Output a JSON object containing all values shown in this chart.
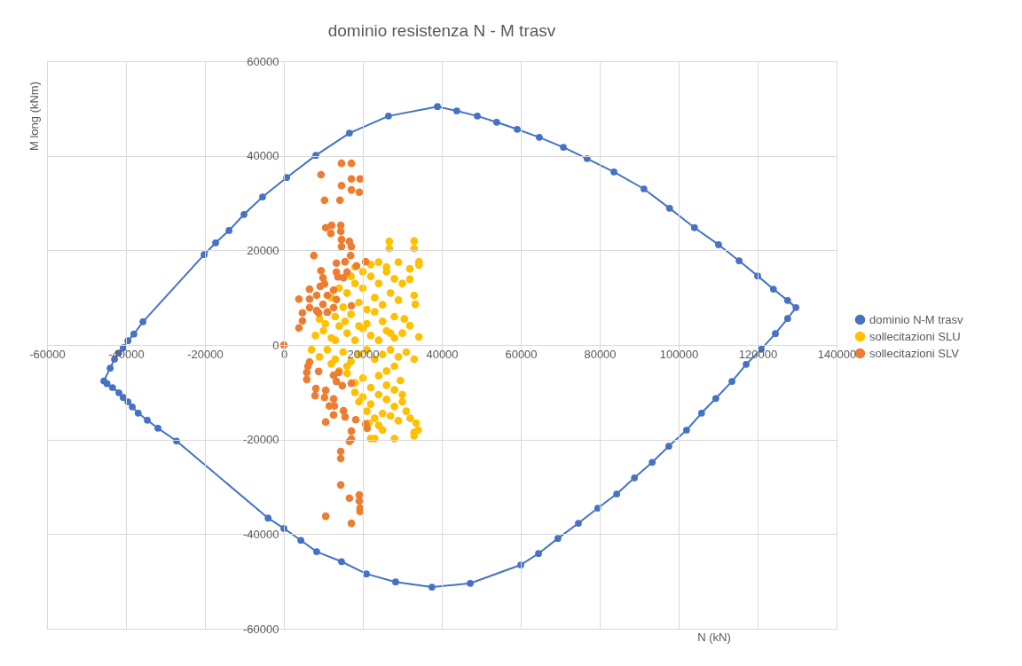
{
  "chart_data": {
    "type": "scatter",
    "title": "dominio resistenza N - M trasv",
    "xlabel": "N (kN)",
    "ylabel": "M long (kNm)",
    "xlim": [
      -60000,
      140000
    ],
    "xticks": [
      -60000,
      -40000,
      -20000,
      0,
      20000,
      40000,
      60000,
      80000,
      100000,
      120000,
      140000
    ],
    "ylim": [
      -60000,
      60000
    ],
    "yticks": [
      -60000,
      -40000,
      -20000,
      0,
      20000,
      40000,
      60000
    ],
    "grid": true,
    "legend": "right",
    "marker": "circle",
    "series": [
      {
        "name": "dominio N-M trasv",
        "type": "line",
        "line_style": "solid",
        "color": "#4472c4",
        "x": [
          -45600,
          -44000,
          -42900,
          -41800,
          -40700,
          -39500,
          -38000,
          -35700,
          -20200,
          -17300,
          -13900,
          -10100,
          -5400,
          700,
          8100,
          16600,
          26500,
          38900,
          43800,
          49000,
          53900,
          59100,
          64700,
          70800,
          76800,
          83600,
          91200,
          97700,
          104000,
          110100,
          115300,
          120000,
          124000,
          127600,
          129700,
          127600,
          124500,
          120900,
          117100,
          113500,
          109400,
          105800,
          102000,
          97500,
          93300,
          88800,
          84300,
          79500,
          74600,
          69400,
          64500,
          60000,
          47200,
          37500,
          28300,
          20900,
          14600,
          8300,
          4300,
          0,
          -4000,
          -27200,
          -31900,
          -34600,
          -36900,
          -38400,
          -39500,
          -40700,
          -41800,
          -43400,
          -44800
        ],
        "values": [
          -7600,
          -4900,
          -3000,
          -1700,
          -600,
          900,
          2300,
          4900,
          19100,
          21600,
          24200,
          27600,
          31300,
          35400,
          40100,
          44800,
          48400,
          50400,
          49500,
          48400,
          47100,
          45600,
          43900,
          41800,
          39400,
          36600,
          33000,
          28900,
          24800,
          21200,
          17800,
          14600,
          11800,
          9400,
          7900,
          5600,
          2400,
          -900,
          -4100,
          -7700,
          -11300,
          -14400,
          -18000,
          -21400,
          -24800,
          -28100,
          -31500,
          -34500,
          -37700,
          -40900,
          -44100,
          -46500,
          -50400,
          -51200,
          -50100,
          -48400,
          -45800,
          -43700,
          -41300,
          -38800,
          -36600,
          -20300,
          -17600,
          -15900,
          -14400,
          -13100,
          -12000,
          -11100,
          -10100,
          -9000,
          -8200
        ]
      },
      {
        "name": "sollecitazioni SLU",
        "color": "#ffc000",
        "x": [
          8000,
          10000,
          12000,
          14000,
          16000,
          18000,
          20000,
          22000,
          24000,
          26000,
          28000,
          30000,
          9000,
          11000,
          13000,
          15000,
          17000,
          19000,
          21000,
          23000,
          25000,
          27000,
          29000,
          12000,
          14000,
          16000,
          18000,
          20000,
          22000,
          24000,
          26000,
          28000,
          18000,
          20000,
          22000,
          24000,
          26000,
          29000,
          30000,
          30500,
          28000,
          21000,
          19000,
          25000,
          17000,
          13000,
          33000,
          33000,
          34200,
          34200,
          31900,
          31900,
          33000,
          33300,
          31900,
          34200,
          26700,
          26700,
          23000,
          10500,
          15500,
          27000,
          7000,
          9000,
          11000,
          13000,
          15000,
          17000,
          19000,
          21000,
          23000,
          25000,
          27000,
          29000,
          31000,
          33000,
          16000,
          18000,
          20000,
          22000,
          24000,
          26000,
          28000,
          20000,
          22000,
          24000,
          26000,
          28000,
          30000,
          31000,
          32000,
          33500,
          34000,
          29000,
          27000,
          25000,
          23000,
          24000,
          21000,
          19000,
          18000,
          22000,
          23000,
          28000,
          33000,
          33000,
          16000,
          12000,
          14000,
          26000,
          28000,
          30000,
          29500,
          25000,
          21500
        ],
        "values": [
          2000,
          3000,
          1500,
          4000,
          2500,
          1000,
          3500,
          2000,
          1000,
          3000,
          1500,
          2500,
          5500,
          7000,
          6000,
          8000,
          6500,
          9000,
          7500,
          10000,
          8500,
          11000,
          9500,
          10000,
          12000,
          11000,
          13000,
          12000,
          14500,
          13000,
          15500,
          14000,
          16500,
          15500,
          17000,
          17500,
          16500,
          17500,
          13000,
          5500,
          6000,
          4500,
          4000,
          5000,
          14500,
          1000,
          22000,
          20400,
          17600,
          16900,
          16100,
          13900,
          10500,
          8600,
          4100,
          1700,
          21900,
          20400,
          7000,
          4500,
          5000,
          2500,
          -1000,
          -2500,
          -1000,
          -3000,
          -1500,
          -3500,
          -2000,
          -1000,
          -3000,
          -2000,
          -1000,
          -2500,
          -1500,
          -3000,
          -6000,
          -8000,
          -7000,
          -9000,
          -6500,
          -5500,
          -4500,
          -11000,
          -12500,
          -10500,
          -11500,
          -13000,
          -12000,
          -14000,
          -15500,
          -16500,
          -18000,
          -16000,
          -15000,
          -14500,
          -15500,
          -17000,
          -14000,
          -12000,
          -10000,
          -19800,
          -19800,
          -19800,
          -18500,
          -19200,
          -4500,
          -4000,
          -5500,
          -8500,
          -9500,
          -10500,
          -7500,
          -18000,
          -16500
        ]
      },
      {
        "name": "sollecitazioni SLV",
        "color": "#ed7d31",
        "x": [
          14600,
          17100,
          9400,
          17100,
          19300,
          14600,
          17100,
          19100,
          10300,
          14200,
          10600,
          12100,
          14400,
          11900,
          14400,
          14600,
          16600,
          17100,
          14600,
          7600,
          16900,
          15500,
          13300,
          20700,
          18400,
          9400,
          13300,
          16000,
          9900,
          13700,
          15100,
          6500,
          9200,
          10300,
          12600,
          3800,
          6500,
          8300,
          11000,
          13300,
          9900,
          6500,
          12600,
          17100,
          4700,
          8800,
          11000,
          4700,
          3800,
          8300,
          0,
          6500,
          6100,
          5800,
          5800,
          8800,
          12600,
          13900,
          13300,
          17100,
          14800,
          8100,
          7900,
          10600,
          10300,
          12600,
          11500,
          12800,
          12600,
          15100,
          15500,
          18200,
          20700,
          21100,
          10600,
          17100,
          17100,
          16600,
          14400,
          14400,
          14400,
          16600,
          19100,
          19100,
          19300,
          19300,
          10600,
          17100
        ],
        "values": [
          38400,
          38400,
          36000,
          35100,
          35100,
          33700,
          32800,
          32300,
          30600,
          30600,
          24800,
          25300,
          25300,
          23600,
          24000,
          22300,
          21900,
          20800,
          20800,
          18900,
          18900,
          17600,
          17300,
          17600,
          16700,
          15700,
          15400,
          15400,
          14200,
          14400,
          14200,
          11800,
          12400,
          12900,
          11600,
          9700,
          9700,
          10500,
          10500,
          9600,
          8600,
          7900,
          7900,
          8300,
          6800,
          6800,
          6900,
          5100,
          3600,
          7300,
          0,
          -3600,
          -4500,
          -5800,
          -7300,
          -5600,
          -6400,
          -5800,
          -7700,
          -8100,
          -8600,
          -9200,
          -10700,
          -9600,
          -11100,
          -11400,
          -12900,
          -12900,
          -14800,
          -13900,
          -15200,
          -15800,
          -16700,
          -17600,
          -16300,
          -18200,
          -19900,
          -20400,
          -22500,
          -24000,
          -29600,
          -32400,
          -31700,
          -33000,
          -34500,
          -35200,
          -36200,
          -37700
        ]
      }
    ]
  }
}
